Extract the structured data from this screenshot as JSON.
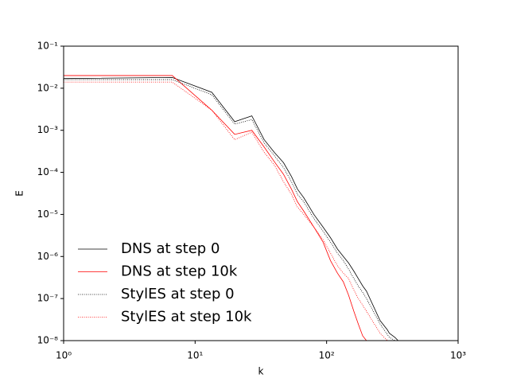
{
  "chart_data": {
    "type": "line",
    "xlabel": "k",
    "ylabel": "E",
    "xscale": "log",
    "yscale": "log",
    "legend": "lower left",
    "xlim": [
      1,
      1000
    ],
    "xticks": [
      {
        "value": 1,
        "label": "10⁰"
      },
      {
        "value": 10,
        "label": "10¹"
      },
      {
        "value": 100,
        "label": "10²"
      },
      {
        "value": 1000,
        "label": "10³"
      }
    ],
    "ylim": [
      1e-08,
      0.1
    ],
    "yticks": [
      {
        "value": 1e-08,
        "label": "10⁻⁸"
      },
      {
        "value": 1e-07,
        "label": "10⁻⁷"
      },
      {
        "value": 1e-06,
        "label": "10⁻⁶"
      },
      {
        "value": 1e-05,
        "label": "10⁻⁵"
      },
      {
        "value": 0.0001,
        "label": "10⁻⁴"
      },
      {
        "value": 0.001,
        "label": "10⁻³"
      },
      {
        "value": 0.01,
        "label": "10⁻²"
      },
      {
        "value": 0.1,
        "label": "10⁻¹"
      }
    ],
    "x": [
      1,
      6.7,
      13.4,
      20,
      27,
      33.5,
      40,
      47,
      54,
      60,
      67,
      80,
      94,
      107,
      121,
      134,
      147,
      161,
      174,
      188,
      201,
      255,
      290,
      300,
      330,
      350
    ],
    "series": [
      {
        "name": "DNS at step 0",
        "color": "#000000",
        "linestyle": "solid",
        "values": [
          0.017,
          0.018,
          0.008,
          0.0016,
          0.0022,
          0.0006,
          0.0003,
          0.00017,
          8e-05,
          4e-05,
          2.5e-05,
          1e-05,
          5e-06,
          2.8e-06,
          1.5e-06,
          1e-06,
          7e-07,
          4.5e-07,
          3e-07,
          2e-07,
          1.5e-07,
          3e-08,
          1.8e-08,
          1.5e-08,
          1.2e-08,
          1e-08
        ]
      },
      {
        "name": "DNS at step 10k",
        "color": "#ff0000",
        "linestyle": "solid",
        "values": [
          0.02,
          0.02,
          0.003,
          0.0008,
          0.001,
          0.0004,
          0.00018,
          9e-05,
          4e-05,
          2e-05,
          1.2e-05,
          5e-06,
          2.2e-06,
          8e-07,
          4e-07,
          2.5e-07,
          1.2e-07,
          5e-08,
          2.5e-08,
          1.3e-08,
          1e-08,
          null,
          null,
          null,
          null,
          null
        ]
      },
      {
        "name": "StylES at step 0",
        "color": "#000000",
        "linestyle": "dotted",
        "values": [
          0.016,
          0.016,
          0.007,
          0.0014,
          0.0018,
          0.0005,
          0.00025,
          0.00013,
          6e-05,
          3e-05,
          2e-05,
          8e-06,
          4e-06,
          2.2e-06,
          1.2e-06,
          8e-07,
          5e-07,
          3e-07,
          2e-07,
          1.4e-07,
          1e-07,
          2.5e-08,
          1.4e-08,
          1.2e-08,
          1e-08,
          null
        ]
      },
      {
        "name": "StylES at step 10k",
        "color": "#ff0000",
        "linestyle": "dotted",
        "values": [
          0.014,
          0.014,
          0.003,
          0.0006,
          0.0009,
          0.0003,
          0.00015,
          6e-05,
          3e-05,
          1.5e-05,
          1e-05,
          5e-06,
          2.5e-06,
          1.2e-06,
          6e-07,
          4e-07,
          3e-07,
          1.6e-07,
          1e-07,
          7e-08,
          5e-08,
          1.5e-08,
          1e-08,
          null,
          null,
          null
        ]
      }
    ]
  }
}
